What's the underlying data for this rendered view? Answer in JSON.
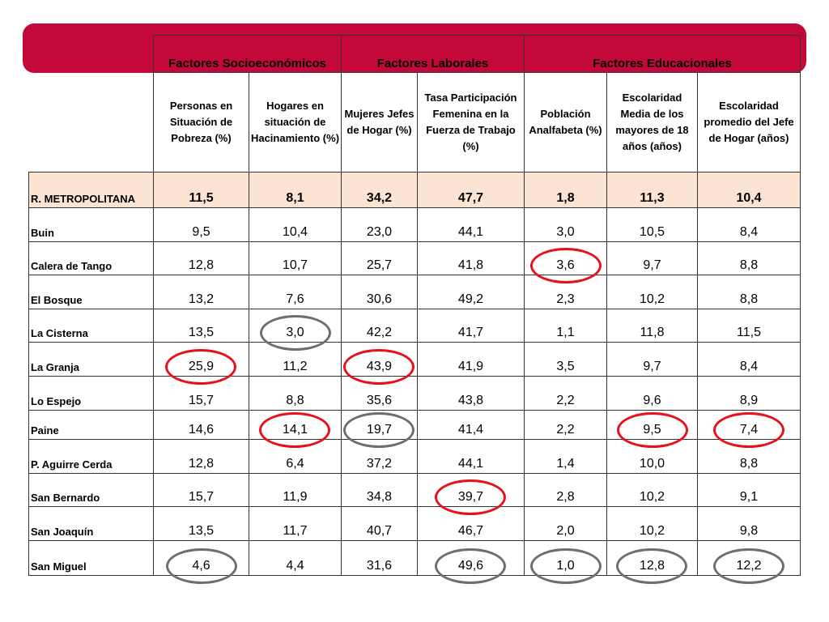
{
  "groups": [
    "Factores Socioeconómicos",
    "Factores Laborales",
    "Factores Educacionales"
  ],
  "columns": [
    "Personas en Situación de Pobreza (%)",
    "Hogares en situación de Hacinamiento (%)",
    "Mujeres Jefes de Hogar (%)",
    "Tasa Participación Femenina en la Fuerza de Trabajo (%)",
    "Población Analfabeta (%)",
    "Escolaridad Media de los mayores de 18 años (años)",
    "Escolaridad promedio del Jefe de Hogar (años)"
  ],
  "rows": [
    {
      "name": "R. METROPOLITANA",
      "values": [
        "11,5",
        "8,1",
        "34,2",
        "47,7",
        "1,8",
        "11,3",
        "10,4"
      ]
    },
    {
      "name": "Buin",
      "values": [
        "9,5",
        "10,4",
        "23,0",
        "44,1",
        "3,0",
        "10,5",
        "8,4"
      ]
    },
    {
      "name": "Calera de Tango",
      "values": [
        "12,8",
        "10,7",
        "25,7",
        "41,8",
        "3,6",
        "9,7",
        "8,8"
      ]
    },
    {
      "name": "El Bosque",
      "values": [
        "13,2",
        "7,6",
        "30,6",
        "49,2",
        "2,3",
        "10,2",
        "8,8"
      ]
    },
    {
      "name": "La Cisterna",
      "values": [
        "13,5",
        "3,0",
        "42,2",
        "41,7",
        "1,1",
        "11,8",
        "11,5"
      ]
    },
    {
      "name": "La Granja",
      "values": [
        "25,9",
        "11,2",
        "43,9",
        "41,9",
        "3,5",
        "9,7",
        "8,4"
      ]
    },
    {
      "name": "Lo Espejo",
      "values": [
        "15,7",
        "8,8",
        "35,6",
        "43,8",
        "2,2",
        "9,6",
        "8,9"
      ]
    },
    {
      "name": "Paine",
      "values": [
        "14,6",
        "14,1",
        "19,7",
        "41,4",
        "2,2",
        "9,5",
        "7,4"
      ]
    },
    {
      "name": "P. Aguirre Cerda",
      "values": [
        "12,8",
        "6,4",
        "37,2",
        "44,1",
        "1,4",
        "10,0",
        "8,8"
      ]
    },
    {
      "name": "San Bernardo",
      "values": [
        "15,7",
        "11,9",
        "34,8",
        "39,7",
        "2,8",
        "10,2",
        "9,1"
      ]
    },
    {
      "name": "San Joaquín",
      "values": [
        "13,5",
        "11,7",
        "40,7",
        "46,7",
        "2,0",
        "10,2",
        "9,8"
      ]
    },
    {
      "name": "San Miguel",
      "values": [
        "4,6",
        "4,4",
        "31,6",
        "49,6",
        "1,0",
        "12,8",
        "12,2"
      ]
    }
  ],
  "highlights": {
    "red_meaning": "highest-risk value marked in red",
    "gray_meaning": "lowest-risk value marked in gray",
    "red_color": "#e8101a",
    "gray_color": "#6e6e6e",
    "marks": [
      {
        "row": 2,
        "col": 4,
        "color": "red"
      },
      {
        "row": 4,
        "col": 1,
        "color": "gray"
      },
      {
        "row": 5,
        "col": 0,
        "color": "red"
      },
      {
        "row": 5,
        "col": 2,
        "color": "red"
      },
      {
        "row": 7,
        "col": 1,
        "color": "red"
      },
      {
        "row": 7,
        "col": 2,
        "color": "gray"
      },
      {
        "row": 7,
        "col": 5,
        "color": "red"
      },
      {
        "row": 7,
        "col": 6,
        "color": "red"
      },
      {
        "row": 9,
        "col": 3,
        "color": "red"
      },
      {
        "row": 11,
        "col": 0,
        "color": "gray"
      },
      {
        "row": 11,
        "col": 3,
        "color": "gray"
      },
      {
        "row": 11,
        "col": 4,
        "color": "gray"
      },
      {
        "row": 11,
        "col": 5,
        "color": "gray"
      },
      {
        "row": 11,
        "col": 6,
        "color": "gray"
      }
    ]
  },
  "colors": {
    "banner": "#c4083a",
    "region_row": "#fbe4d3"
  }
}
